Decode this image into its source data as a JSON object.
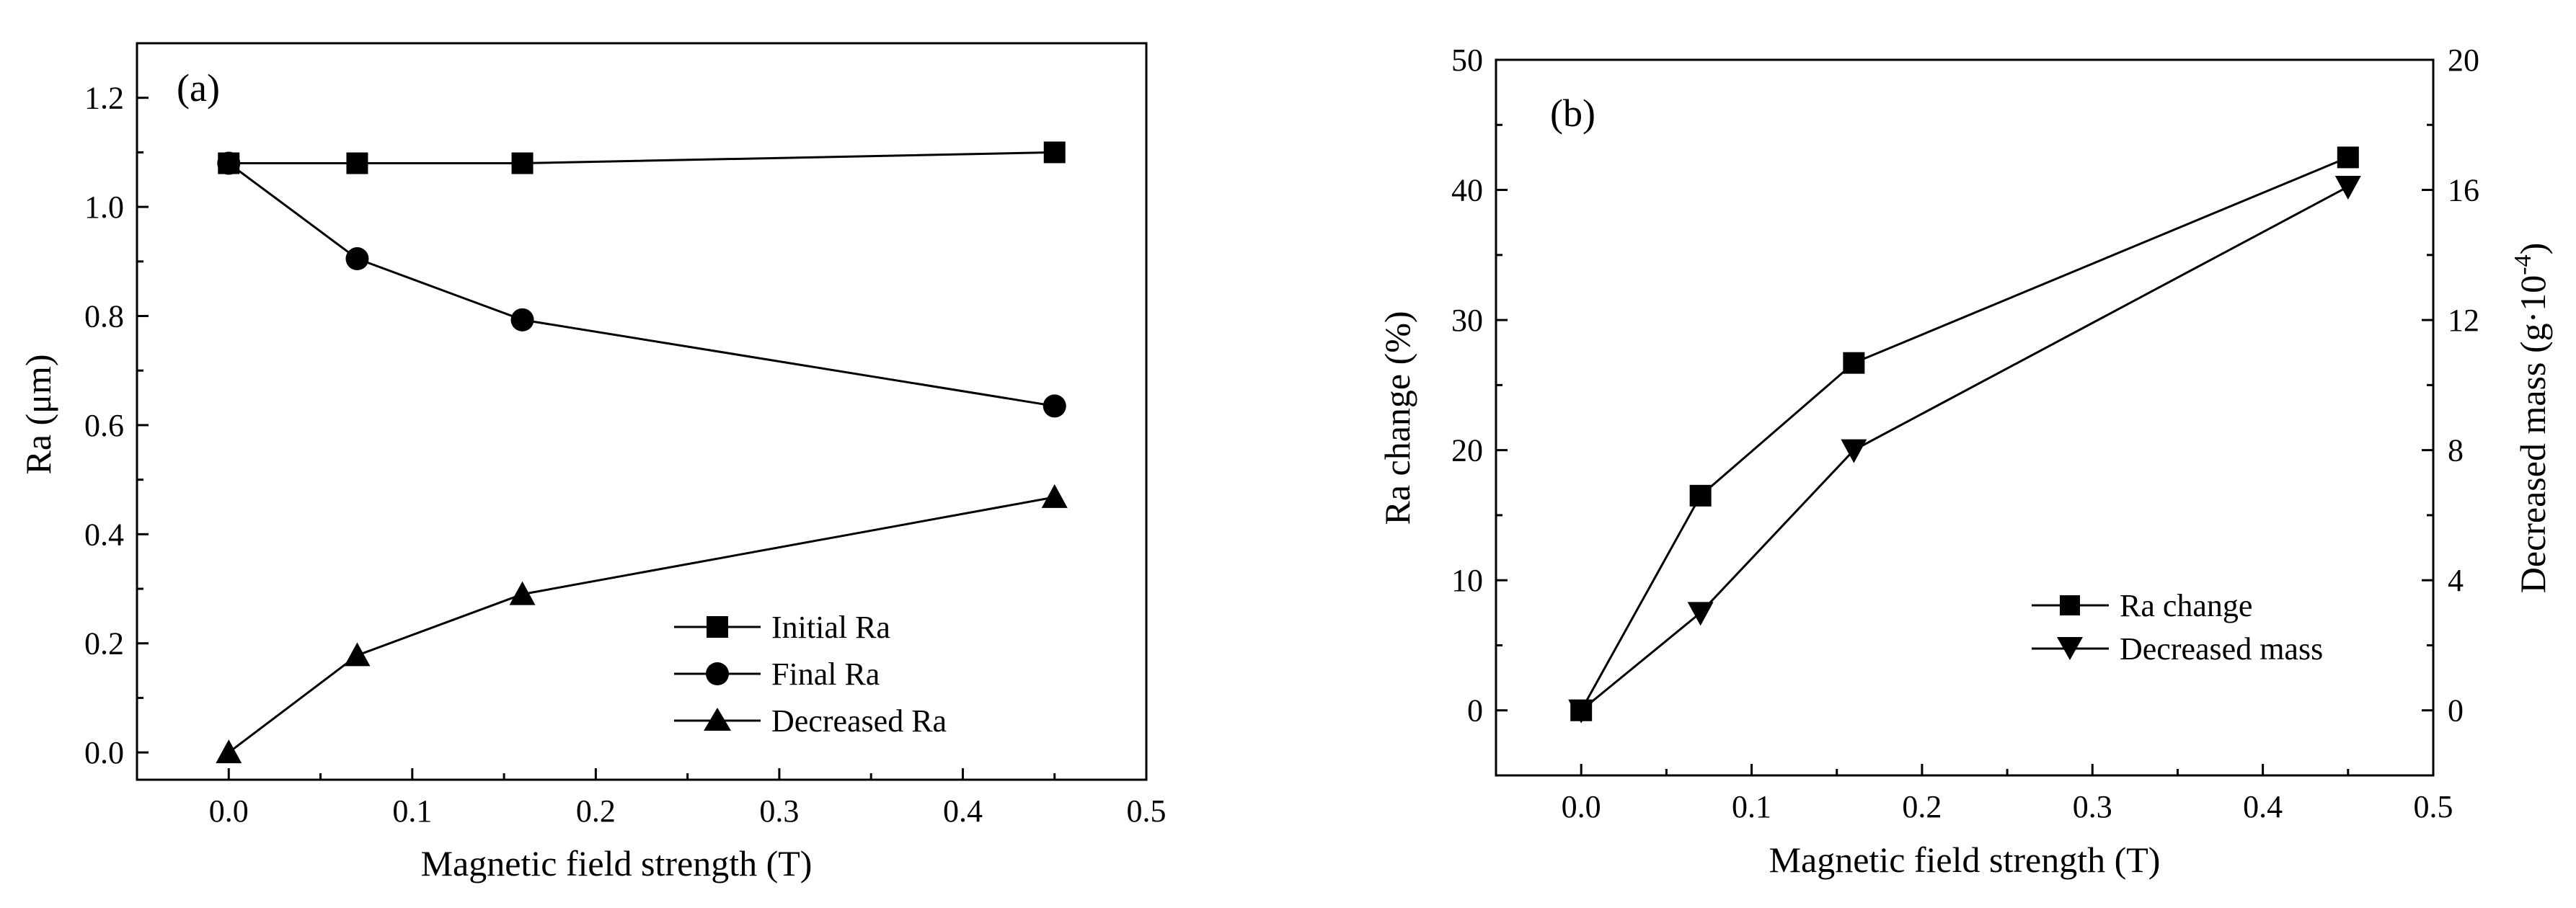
{
  "chart_data": [
    {
      "type": "line",
      "panel_label": "(a)",
      "xlabel": "Magnetic field strength (T)",
      "ylabel": "Ra (μm)",
      "xlim": [
        -0.05,
        0.5
      ],
      "ylim": [
        -0.05,
        1.3
      ],
      "xticks": [
        0.0,
        0.1,
        0.2,
        0.3,
        0.4,
        0.5
      ],
      "xtick_labels": [
        "0.0",
        "0.1",
        "0.2",
        "0.3",
        "0.4",
        "0.5"
      ],
      "yticks": [
        0.0,
        0.2,
        0.4,
        0.6,
        0.8,
        1.0,
        1.2
      ],
      "ytick_labels": [
        "0.0",
        "0.2",
        "0.4",
        "0.6",
        "0.8",
        "1.0",
        "1.2"
      ],
      "legend_position": "bottom-right",
      "x": [
        0.0,
        0.07,
        0.16,
        0.45
      ],
      "series": [
        {
          "name": "Initial Ra",
          "marker": "square",
          "values": [
            1.08,
            1.08,
            1.08,
            1.1
          ]
        },
        {
          "name": "Final Ra",
          "marker": "circle",
          "values": [
            1.08,
            0.905,
            0.793,
            0.635
          ]
        },
        {
          "name": "Decreased Ra",
          "marker": "triangle-up",
          "values": [
            0.0,
            0.178,
            0.29,
            0.468
          ]
        }
      ]
    },
    {
      "type": "line",
      "panel_label": "(b)",
      "xlabel": "Magnetic field strength (T)",
      "ylabel": "Ra change (%)",
      "y2label": "Decreased mass (g·10",
      "y2label_exp": "-4",
      "y2label_close": ")",
      "xlim": [
        -0.05,
        0.5
      ],
      "ylim": [
        -5,
        50
      ],
      "y2lim": [
        -2,
        20
      ],
      "xticks": [
        0.0,
        0.1,
        0.2,
        0.3,
        0.4,
        0.5
      ],
      "xtick_labels": [
        "0.0",
        "0.1",
        "0.2",
        "0.3",
        "0.4",
        "0.5"
      ],
      "yticks": [
        0,
        10,
        20,
        30,
        40,
        50
      ],
      "ytick_labels": [
        "0",
        "10",
        "20",
        "30",
        "40",
        "50"
      ],
      "y2ticks": [
        0,
        4,
        8,
        12,
        16,
        20
      ],
      "y2tick_labels": [
        "0",
        "4",
        "8",
        "12",
        "16",
        "20"
      ],
      "legend_position": "center-right",
      "x": [
        0.0,
        0.07,
        0.16,
        0.45
      ],
      "series": [
        {
          "name": "Ra change",
          "marker": "square",
          "axis": "left",
          "values": [
            0,
            16.5,
            26.7,
            42.5
          ]
        },
        {
          "name": "Decreased mass",
          "marker": "triangle-down",
          "axis": "right",
          "values": [
            0,
            3.0,
            8.0,
            16.1
          ]
        }
      ]
    }
  ]
}
